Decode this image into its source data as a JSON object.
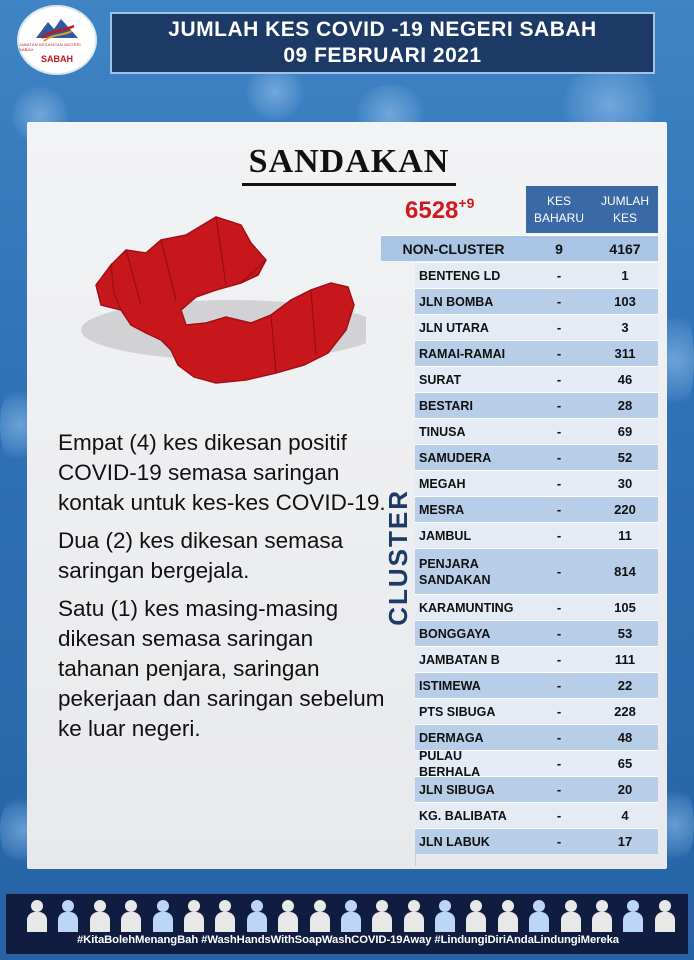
{
  "logo": {
    "name": "SABAH",
    "subtitle": "JABATAN KESIHATAN NEGERI SABAH"
  },
  "header": {
    "line1": "JUMLAH KES COVID -19 NEGERI SABAH",
    "line2": "09 FEBRUARI 2021"
  },
  "district": "SANDAKAN",
  "total": {
    "value": "6528",
    "new": "+9"
  },
  "table": {
    "col_new": "KES BAHARU",
    "col_total": "JUMLAH KES",
    "non_cluster": {
      "name": "NON-CLUSTER",
      "new": "9",
      "total": "4167"
    },
    "cluster_label": "CLUSTER",
    "clusters": [
      {
        "name": "BENTENG LD",
        "new": "-",
        "total": "1"
      },
      {
        "name": "JLN BOMBA",
        "new": "-",
        "total": "103"
      },
      {
        "name": "JLN UTARA",
        "new": "-",
        "total": "3"
      },
      {
        "name": "RAMAI-RAMAI",
        "new": "-",
        "total": "311"
      },
      {
        "name": "SURAT",
        "new": "-",
        "total": "46"
      },
      {
        "name": "BESTARI",
        "new": "-",
        "total": "28"
      },
      {
        "name": "TINUSA",
        "new": "-",
        "total": "69"
      },
      {
        "name": "SAMUDERA",
        "new": "-",
        "total": "52"
      },
      {
        "name": "MEGAH",
        "new": "-",
        "total": "30"
      },
      {
        "name": "MESRA",
        "new": "-",
        "total": "220"
      },
      {
        "name": "JAMBUL",
        "new": "-",
        "total": "11"
      },
      {
        "name": "PENJARA SANDAKAN",
        "new": "-",
        "total": "814"
      },
      {
        "name": "KARAMUNTING",
        "new": "-",
        "total": "105"
      },
      {
        "name": "BONGGAYA",
        "new": "-",
        "total": "53"
      },
      {
        "name": "JAMBATAN B",
        "new": "-",
        "total": "111"
      },
      {
        "name": "ISTIMEWA",
        "new": "-",
        "total": "22"
      },
      {
        "name": "PTS SIBUGA",
        "new": "-",
        "total": "228"
      },
      {
        "name": "DERMAGA",
        "new": "-",
        "total": "48"
      },
      {
        "name": "PULAU BERHALA",
        "new": "-",
        "total": "65"
      },
      {
        "name": "JLN SIBUGA",
        "new": "-",
        "total": "20"
      },
      {
        "name": "KG. BALIBATA",
        "new": "-",
        "total": "4"
      },
      {
        "name": "JLN LABUK",
        "new": "-",
        "total": "17"
      }
    ]
  },
  "description": [
    "Empat (4) kes dikesan positif COVID-19 semasa saringan kontak untuk kes-kes COVID-19.",
    "Dua (2) kes dikesan semasa saringan bergejala.",
    "Satu (1) kes masing-masing dikesan semasa saringan tahanan penjara, saringan pekerjaan dan saringan sebelum ke luar negeri."
  ],
  "footer": {
    "hashtags": "#KitaBolehMenangBah #WashHandsWithSoapWashCOVID-19Away #LindungiDiriAndaLindungiMereka"
  },
  "colors": {
    "header_bg": "#1d3a67",
    "total_red": "#d0181f",
    "map_red": "#c8161d",
    "table_head": "#3a69a6"
  }
}
